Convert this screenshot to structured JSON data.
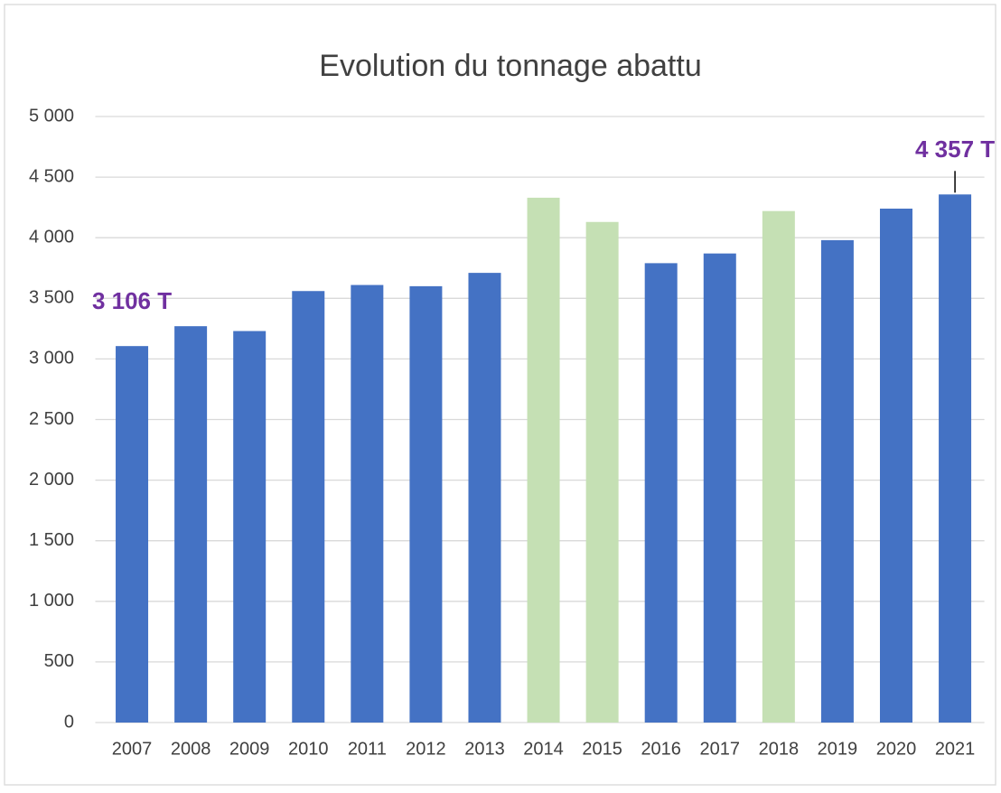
{
  "chart_data": {
    "type": "bar",
    "title": "Evolution du tonnage abattu",
    "categories": [
      "2007",
      "2008",
      "2009",
      "2010",
      "2011",
      "2012",
      "2013",
      "2014",
      "2015",
      "2016",
      "2017",
      "2018",
      "2019",
      "2020",
      "2021"
    ],
    "values": [
      3106,
      3270,
      3230,
      3560,
      3610,
      3600,
      3710,
      4330,
      4130,
      3790,
      3870,
      4220,
      3980,
      4240,
      4357
    ],
    "value_labels": [
      "3 106 T",
      null,
      null,
      null,
      null,
      null,
      null,
      null,
      null,
      null,
      null,
      null,
      null,
      null,
      "4 357 T"
    ],
    "colors": [
      "#4472c4",
      "#4472c4",
      "#4472c4",
      "#4472c4",
      "#4472c4",
      "#4472c4",
      "#4472c4",
      "#c5e0b4",
      "#c5e0b4",
      "#4472c4",
      "#4472c4",
      "#c5e0b4",
      "#4472c4",
      "#4472c4",
      "#4472c4"
    ],
    "value_label_color": "#7030a0",
    "ylim": [
      0,
      5000
    ],
    "yticks": [
      0,
      500,
      {
        "value": 1000,
        "label": "1 000"
      },
      {
        "value": 1500,
        "label": "1 500"
      },
      {
        "value": 2000,
        "label": "2 000"
      },
      {
        "value": 2500,
        "label": "2 500"
      },
      {
        "value": 3000,
        "label": "3 000"
      },
      {
        "value": 3500,
        "label": "3 500"
      },
      {
        "value": 4000,
        "label": "4 000"
      },
      {
        "value": 4500,
        "label": "4 500"
      },
      {
        "value": 5000,
        "label": "5 000"
      }
    ],
    "grid": true
  }
}
